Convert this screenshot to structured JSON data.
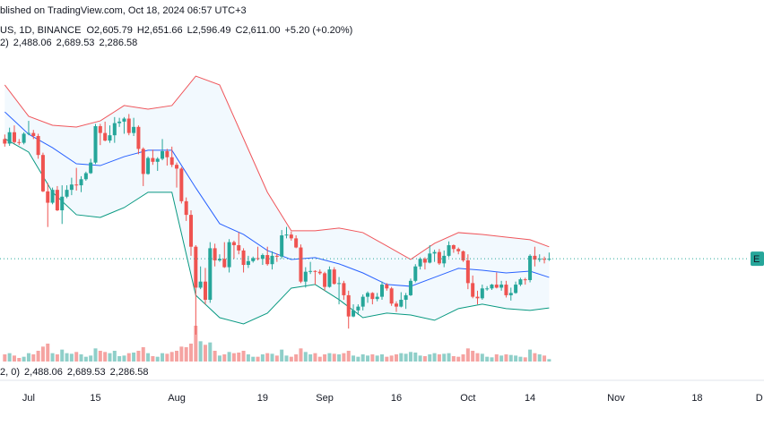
{
  "chart_data": {
    "type": "candlestick",
    "header": {
      "published": "blished on TradingView.com, Oct 18, 2024 06:57 UTC+3",
      "symbol": "US, 1D, BINANCE",
      "ohlc": [
        "O2,605.79",
        "H2,651.66",
        "L2,596.49",
        "C2,611.00"
      ],
      "change": "+5.20 (+0.20%)",
      "bb_legend": "2)",
      "bb_values": [
        "2,488.06",
        "2,689.53",
        "2,286.58"
      ],
      "vol_legend": "2, 0)",
      "vol_values": [
        "2,488.06",
        "2,689.53",
        "2,286.58"
      ],
      "price_tag": "E"
    },
    "x": [
      "Jun 26",
      "Jun 27",
      "Jun 28",
      "Jun 29",
      "Jun 30",
      "Jul 1",
      "Jul 2",
      "Jul 3",
      "Jul 4",
      "Jul 5",
      "Jul 6",
      "Jul 7",
      "Jul 8",
      "Jul 9",
      "Jul 10",
      "Jul 11",
      "Jul 12",
      "Jul 13",
      "Jul 14",
      "Jul 15",
      "Jul 16",
      "Jul 17",
      "Jul 18",
      "Jul 19",
      "Jul 20",
      "Jul 21",
      "Jul 22",
      "Jul 23",
      "Jul 24",
      "Jul 25",
      "Jul 26",
      "Jul 27",
      "Jul 28",
      "Jul 29",
      "Jul 30",
      "Jul 31",
      "Aug 1",
      "Aug 2",
      "Aug 3",
      "Aug 4",
      "Aug 5",
      "Aug 6",
      "Aug 7",
      "Aug 8",
      "Aug 9",
      "Aug 10",
      "Aug 11",
      "Aug 12",
      "Aug 13",
      "Aug 14",
      "Aug 15",
      "Aug 16",
      "Aug 17",
      "Aug 18",
      "Aug 19",
      "Aug 20",
      "Aug 21",
      "Aug 22",
      "Aug 23",
      "Aug 24",
      "Aug 25",
      "Aug 26",
      "Aug 27",
      "Aug 28",
      "Aug 29",
      "Aug 30",
      "Aug 31",
      "Sep 1",
      "Sep 2",
      "Sep 3",
      "Sep 4",
      "Sep 5",
      "Sep 6",
      "Sep 7",
      "Sep 8",
      "Sep 9",
      "Sep 10",
      "Sep 11",
      "Sep 12",
      "Sep 13",
      "Sep 14",
      "Sep 15",
      "Sep 16",
      "Sep 17",
      "Sep 18",
      "Sep 19",
      "Sep 20",
      "Sep 21",
      "Sep 22",
      "Sep 23",
      "Sep 24",
      "Sep 25",
      "Sep 26",
      "Sep 27",
      "Sep 28",
      "Sep 29",
      "Sep 30",
      "Oct 1",
      "Oct 2",
      "Oct 3",
      "Oct 4",
      "Oct 5",
      "Oct 6",
      "Oct 7",
      "Oct 8",
      "Oct 9",
      "Oct 10",
      "Oct 11",
      "Oct 12",
      "Oct 13",
      "Oct 14",
      "Oct 15",
      "Oct 16",
      "Oct 17",
      "Oct 18"
    ],
    "open": [
      3400,
      3370,
      3445,
      3380,
      3375,
      3435,
      3440,
      3420,
      3295,
      3055,
      2980,
      3065,
      2930,
      3020,
      3065,
      3100,
      3095,
      3135,
      3175,
      3245,
      3485,
      3440,
      3390,
      3425,
      3505,
      3515,
      3535,
      3440,
      3480,
      3335,
      3170,
      3275,
      3250,
      3270,
      3320,
      3280,
      3230,
      3205,
      2990,
      2900,
      2690,
      2420,
      2460,
      2340,
      2680,
      2600,
      2610,
      2555,
      2720,
      2700,
      2665,
      2570,
      2595,
      2615,
      2610,
      2635,
      2575,
      2630,
      2625,
      2765,
      2770,
      2745,
      2685,
      2460,
      2525,
      2530,
      2525,
      2515,
      2425,
      2540,
      2445,
      2450,
      2370,
      2230,
      2270,
      2295,
      2360,
      2385,
      2345,
      2360,
      2440,
      2415,
      2315,
      2295,
      2340,
      2370,
      2465,
      2560,
      2610,
      2585,
      2645,
      2655,
      2580,
      2630,
      2700,
      2675,
      2660,
      2600,
      2450,
      2360,
      2350,
      2415,
      2415,
      2440,
      2420,
      2440,
      2370,
      2385,
      2440,
      2475,
      2470,
      2630,
      2605,
      2610,
      2605.79
    ],
    "high": [
      3430,
      3475,
      3490,
      3400,
      3445,
      3520,
      3460,
      3435,
      3310,
      3110,
      3080,
      3090,
      3095,
      3095,
      3145,
      3210,
      3155,
      3185,
      3270,
      3500,
      3500,
      3515,
      3490,
      3545,
      3540,
      3545,
      3565,
      3540,
      3490,
      3345,
      3285,
      3330,
      3280,
      3400,
      3335,
      3350,
      3245,
      3215,
      3015,
      2930,
      2700,
      2560,
      2550,
      2720,
      2710,
      2640,
      2720,
      2740,
      2730,
      2785,
      2680,
      2630,
      2625,
      2690,
      2645,
      2690,
      2660,
      2645,
      2800,
      2820,
      2790,
      2765,
      2705,
      2555,
      2590,
      2535,
      2540,
      2525,
      2560,
      2555,
      2490,
      2465,
      2400,
      2310,
      2310,
      2375,
      2395,
      2390,
      2385,
      2460,
      2450,
      2425,
      2330,
      2390,
      2385,
      2480,
      2575,
      2620,
      2620,
      2700,
      2670,
      2675,
      2665,
      2725,
      2705,
      2685,
      2665,
      2640,
      2500,
      2400,
      2440,
      2430,
      2445,
      2520,
      2465,
      2465,
      2420,
      2460,
      2485,
      2485,
      2640,
      2690,
      2640,
      2625,
      2651.66
    ],
    "low": [
      3350,
      3355,
      3370,
      3360,
      3365,
      3425,
      3400,
      3270,
      3050,
      2820,
      2970,
      2925,
      2840,
      3010,
      3030,
      3060,
      3050,
      3125,
      3170,
      3235,
      3360,
      3385,
      3375,
      3375,
      3480,
      3435,
      3425,
      3420,
      3300,
      3090,
      3165,
      3230,
      3190,
      3260,
      3225,
      3215,
      3080,
      2975,
      2860,
      2630,
      2110,
      2410,
      2310,
      2320,
      2560,
      2590,
      2550,
      2520,
      2610,
      2640,
      2520,
      2550,
      2585,
      2600,
      2570,
      2565,
      2540,
      2590,
      2610,
      2745,
      2730,
      2680,
      2450,
      2420,
      2510,
      2440,
      2505,
      2400,
      2420,
      2440,
      2310,
      2340,
      2150,
      2225,
      2240,
      2270,
      2320,
      2310,
      2330,
      2340,
      2400,
      2300,
      2260,
      2290,
      2280,
      2365,
      2455,
      2540,
      2540,
      2580,
      2590,
      2570,
      2555,
      2620,
      2650,
      2640,
      2590,
      2410,
      2350,
      2310,
      2340,
      2400,
      2405,
      2415,
      2400,
      2355,
      2335,
      2380,
      2430,
      2440,
      2455,
      2560,
      2590,
      2580,
      2596.49
    ],
    "close": [
      3370,
      3445,
      3380,
      3375,
      3435,
      3440,
      3420,
      3295,
      3055,
      2980,
      3065,
      2930,
      3020,
      3065,
      3100,
      3095,
      3135,
      3175,
      3245,
      3485,
      3440,
      3390,
      3425,
      3505,
      3515,
      3535,
      3440,
      3480,
      3335,
      3170,
      3275,
      3250,
      3270,
      3320,
      3280,
      3230,
      3205,
      2990,
      2900,
      2690,
      2420,
      2460,
      2340,
      2680,
      2600,
      2610,
      2555,
      2720,
      2700,
      2665,
      2570,
      2595,
      2615,
      2610,
      2635,
      2575,
      2630,
      2625,
      2765,
      2770,
      2745,
      2685,
      2460,
      2525,
      2530,
      2525,
      2515,
      2425,
      2540,
      2445,
      2450,
      2370,
      2230,
      2270,
      2295,
      2360,
      2385,
      2345,
      2360,
      2440,
      2415,
      2315,
      2295,
      2340,
      2370,
      2465,
      2560,
      2610,
      2585,
      2645,
      2655,
      2580,
      2630,
      2700,
      2675,
      2660,
      2600,
      2450,
      2360,
      2350,
      2415,
      2415,
      2440,
      2420,
      2440,
      2370,
      2385,
      2440,
      2475,
      2470,
      2630,
      2605,
      2610,
      2605.79,
      2611
    ],
    "volume": [
      12,
      14,
      10,
      6,
      8,
      14,
      12,
      18,
      25,
      30,
      14,
      12,
      20,
      14,
      13,
      16,
      12,
      8,
      10,
      22,
      18,
      16,
      14,
      18,
      9,
      10,
      14,
      15,
      18,
      24,
      14,
      9,
      8,
      14,
      13,
      16,
      18,
      25,
      24,
      30,
      60,
      34,
      28,
      32,
      18,
      10,
      12,
      16,
      14,
      15,
      18,
      12,
      8,
      8,
      12,
      14,
      13,
      10,
      20,
      10,
      8,
      12,
      22,
      16,
      12,
      14,
      8,
      12,
      14,
      13,
      12,
      14,
      18,
      10,
      8,
      12,
      10,
      12,
      10,
      12,
      8,
      10,
      12,
      14,
      13,
      16,
      15,
      10,
      9,
      12,
      14,
      12,
      13,
      14,
      9,
      8,
      12,
      22,
      18,
      14,
      13,
      8,
      7,
      12,
      10,
      12,
      11,
      10,
      8,
      7,
      20,
      14,
      12,
      10,
      4
    ],
    "up_color": "#26a69a",
    "down_color": "#ef5350",
    "vol_up_color": "#8fcfc9",
    "vol_down_color": "#f5a3a1",
    "bands": {
      "x": [
        "Jun 26",
        "Jul 1",
        "Jul 6",
        "Jul 11",
        "Jul 16",
        "Jul 21",
        "Jul 26",
        "Jul 31",
        "Aug 5",
        "Aug 10",
        "Aug 15",
        "Aug 20",
        "Aug 25",
        "Aug 30",
        "Sep 4",
        "Sep 9",
        "Sep 14",
        "Sep 19",
        "Sep 24",
        "Sep 29",
        "Oct 4",
        "Oct 9",
        "Oct 14",
        "Oct 18"
      ],
      "series": [
        {
          "color": "#f0565b",
          "values": [
            3757,
            3550,
            3491,
            3479,
            3520,
            3621,
            3597,
            3621,
            3815,
            3757,
            3403,
            3049,
            2795,
            2795,
            2813,
            2783,
            2695,
            2606,
            2712,
            2783,
            2771,
            2753,
            2736,
            2689.53
          ]
        },
        {
          "color": "#2962ff",
          "values": [
            3579,
            3432,
            3343,
            3237,
            3225,
            3284,
            3326,
            3326,
            3078,
            2842,
            2771,
            2665,
            2606,
            2618,
            2577,
            2517,
            2441,
            2429,
            2488,
            2547,
            2535,
            2517,
            2529,
            2488.06
          ]
        },
        {
          "color": "#089981",
          "values": [
            3403,
            3314,
            3049,
            2901,
            2883,
            2948,
            3049,
            3049,
            2370,
            2222,
            2181,
            2252,
            2417,
            2441,
            2341,
            2222,
            2252,
            2240,
            2205,
            2282,
            2311,
            2282,
            2270,
            2286.58
          ]
        }
      ],
      "fill": "rgba(33,150,243,0.06)"
    },
    "xlim": [
      "Jun 25",
      "Dec 2"
    ],
    "ylim": [
      1927,
      4317
    ],
    "vlim": [
      0,
      150
    ],
    "xticks": [
      {
        "value": "Jul 1",
        "label": "Jul"
      },
      {
        "value": "Jul 15",
        "label": "15"
      },
      {
        "value": "Aug 1",
        "label": "Aug"
      },
      {
        "value": "Aug 19",
        "label": "19"
      },
      {
        "value": "Sep 1",
        "label": "Sep"
      },
      {
        "value": "Sep 16",
        "label": "16"
      },
      {
        "value": "Oct 1",
        "label": "Oct"
      },
      {
        "value": "Oct 14",
        "label": "14"
      },
      {
        "value": "Nov 1",
        "label": "Nov"
      },
      {
        "value": "Nov 18",
        "label": "18"
      },
      {
        "value": "Dec 1",
        "label": "D"
      }
    ]
  }
}
